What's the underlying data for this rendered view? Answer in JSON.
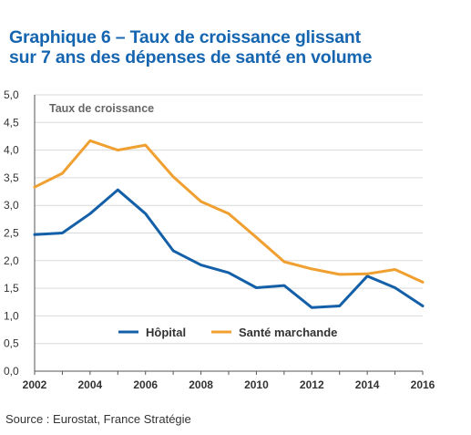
{
  "page": {
    "title_line1": "Graphique 6 – Taux de croissance glissant",
    "title_line2": "sur 7 ans des dépenses de santé en volume",
    "source": "Source : Eurostat, France Stratégie"
  },
  "colors": {
    "title": "#1565b0",
    "series_hopital": "#1460a8",
    "series_sante_marchande": "#f0a030",
    "gridline": "#d9d9d9",
    "axis": "#555555"
  },
  "chart_data": {
    "type": "line",
    "ylabel": "Taux de croissance",
    "xlabel": "",
    "x": [
      2002,
      2003,
      2004,
      2005,
      2006,
      2007,
      2008,
      2009,
      2010,
      2011,
      2012,
      2013,
      2014,
      2015,
      2016
    ],
    "xticks": [
      "2002",
      "2004",
      "2006",
      "2008",
      "2010",
      "2012",
      "2014",
      "2016"
    ],
    "yticks": [
      "0,0",
      "0,5",
      "1,0",
      "1,5",
      "2,0",
      "2,5",
      "3,0",
      "3,5",
      "4,0",
      "4,5",
      "5,0"
    ],
    "ylim": [
      0,
      5
    ],
    "grid": true,
    "legend_position": "bottom-center",
    "series": [
      {
        "name": "Hôpital",
        "color": "#1460a8",
        "values": [
          2.47,
          2.5,
          2.85,
          3.28,
          2.85,
          2.18,
          1.92,
          1.78,
          1.51,
          1.55,
          1.15,
          1.18,
          1.72,
          1.51,
          1.18
        ]
      },
      {
        "name": "Santé marchande",
        "color": "#f0a030",
        "values": [
          3.33,
          3.58,
          4.17,
          4.0,
          4.09,
          3.52,
          3.07,
          2.85,
          2.42,
          1.98,
          1.85,
          1.75,
          1.76,
          1.84,
          1.61
        ]
      }
    ]
  }
}
